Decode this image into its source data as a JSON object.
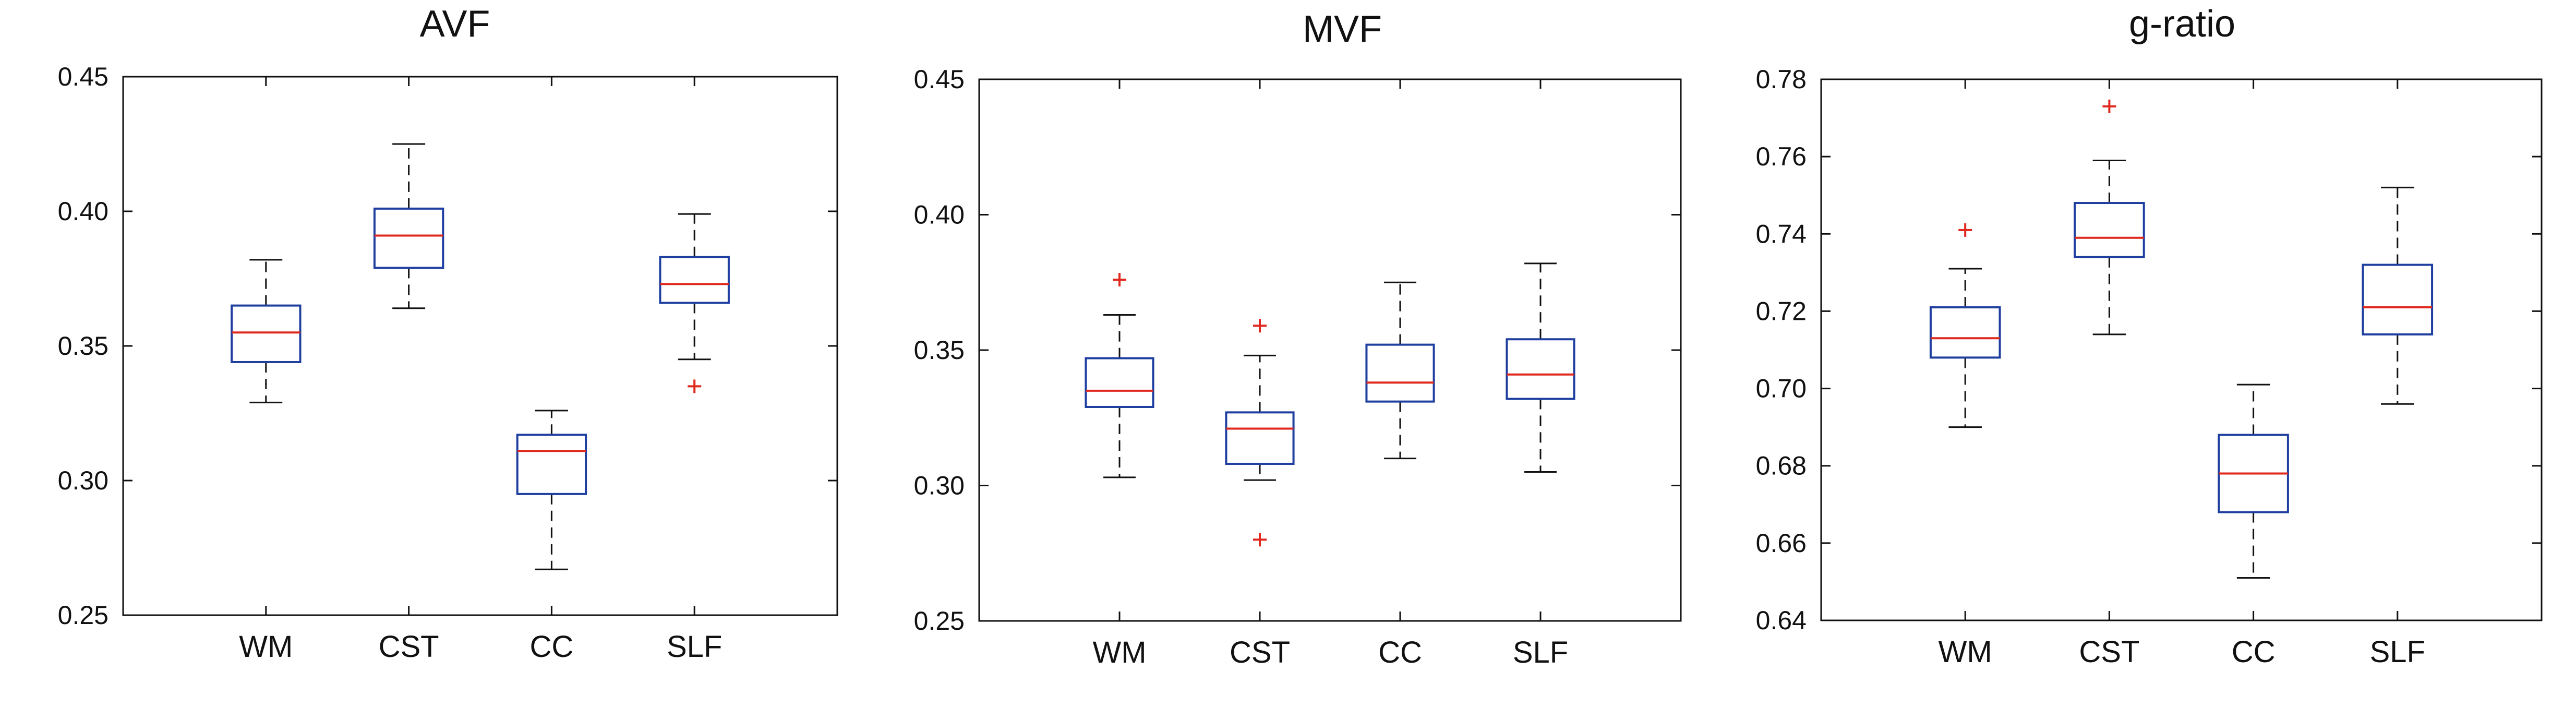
{
  "chart_data": [
    {
      "type": "box",
      "title": "AVF",
      "categories": [
        "WM",
        "CST",
        "CC",
        "SLF"
      ],
      "ylim": [
        0.25,
        0.45
      ],
      "yticks": [
        "0.25",
        "0.30",
        "0.35",
        "0.40",
        "0.45"
      ],
      "yticks_values": [
        0.25,
        0.3,
        0.35,
        0.4,
        0.45
      ],
      "boxes": [
        {
          "whisker_low": 0.329,
          "q1": 0.344,
          "median": 0.355,
          "q3": 0.365,
          "whisker_high": 0.382,
          "outliers": []
        },
        {
          "whisker_low": 0.364,
          "q1": 0.379,
          "median": 0.391,
          "q3": 0.401,
          "whisker_high": 0.425,
          "outliers": []
        },
        {
          "whisker_low": 0.267,
          "q1": 0.295,
          "median": 0.311,
          "q3": 0.317,
          "whisker_high": 0.326,
          "outliers": []
        },
        {
          "whisker_low": 0.345,
          "q1": 0.366,
          "median": 0.373,
          "q3": 0.383,
          "whisker_high": 0.399,
          "outliers": [
            0.335
          ]
        }
      ]
    },
    {
      "type": "box",
      "title": "MVF",
      "categories": [
        "WM",
        "CST",
        "CC",
        "SLF"
      ],
      "ylim": [
        0.25,
        0.45
      ],
      "yticks": [
        "0.25",
        "0.30",
        "0.35",
        "0.40",
        "0.45"
      ],
      "yticks_values": [
        0.25,
        0.3,
        0.35,
        0.4,
        0.45
      ],
      "boxes": [
        {
          "whisker_low": 0.303,
          "q1": 0.329,
          "median": 0.335,
          "q3": 0.347,
          "whisker_high": 0.363,
          "outliers": [
            0.376
          ]
        },
        {
          "whisker_low": 0.302,
          "q1": 0.308,
          "median": 0.321,
          "q3": 0.327,
          "whisker_high": 0.348,
          "outliers": [
            0.359,
            0.28
          ]
        },
        {
          "whisker_low": 0.31,
          "q1": 0.331,
          "median": 0.338,
          "q3": 0.352,
          "whisker_high": 0.375,
          "outliers": []
        },
        {
          "whisker_low": 0.305,
          "q1": 0.332,
          "median": 0.341,
          "q3": 0.354,
          "whisker_high": 0.382,
          "outliers": []
        }
      ]
    },
    {
      "type": "box",
      "title": "g-ratio",
      "categories": [
        "WM",
        "CST",
        "CC",
        "SLF"
      ],
      "ylim": [
        0.64,
        0.78
      ],
      "yticks": [
        "0.64",
        "0.66",
        "0.68",
        "0.70",
        "0.72",
        "0.74",
        "0.76",
        "0.78"
      ],
      "yticks_values": [
        0.64,
        0.66,
        0.68,
        0.7,
        0.72,
        0.74,
        0.76,
        0.78
      ],
      "boxes": [
        {
          "whisker_low": 0.69,
          "q1": 0.708,
          "median": 0.713,
          "q3": 0.721,
          "whisker_high": 0.731,
          "outliers": [
            0.741
          ]
        },
        {
          "whisker_low": 0.714,
          "q1": 0.734,
          "median": 0.739,
          "q3": 0.748,
          "whisker_high": 0.759,
          "outliers": [
            0.773
          ]
        },
        {
          "whisker_low": 0.651,
          "q1": 0.668,
          "median": 0.678,
          "q3": 0.688,
          "whisker_high": 0.701,
          "outliers": []
        },
        {
          "whisker_low": 0.696,
          "q1": 0.714,
          "median": 0.721,
          "q3": 0.732,
          "whisker_high": 0.752,
          "outliers": []
        }
      ]
    }
  ],
  "colors": {
    "box": "#1f3fa0",
    "median": "#e0281e",
    "whisker": "#111111",
    "outlier": "#e0281e",
    "axes": "#111111"
  }
}
